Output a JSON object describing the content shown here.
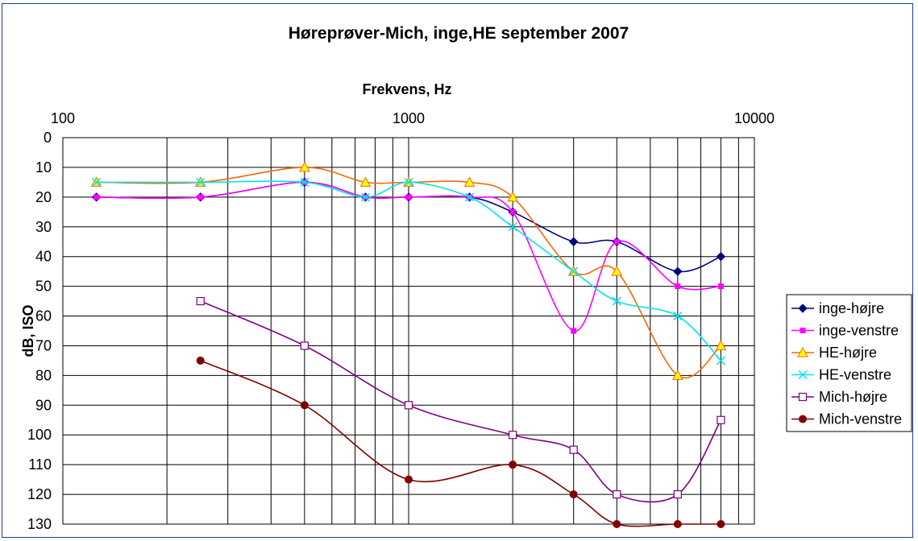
{
  "chart_data": {
    "type": "line",
    "title": "Høreprøver-Mich, inge,HE september 2007",
    "xlabel": "Frekvens, Hz",
    "ylabel": "dB, ISO",
    "x_scale": "log",
    "xlim": [
      100,
      10000
    ],
    "ylim": [
      0,
      130
    ],
    "y_reversed": true,
    "x_axis_position": "top",
    "x_tick_labels": [
      "100",
      "1000",
      "10000"
    ],
    "y_tick_labels": [
      "0",
      "10",
      "20",
      "30",
      "40",
      "50",
      "60",
      "70",
      "80",
      "90",
      "100",
      "110",
      "120",
      "130"
    ],
    "grid": true,
    "legend_position": "right",
    "series": [
      {
        "name": "inge-højre",
        "color": "#000080",
        "marker": "diamond",
        "x": [
          125,
          250,
          500,
          750,
          1000,
          1500,
          2000,
          3000,
          4000,
          6000,
          8000
        ],
        "y": [
          20,
          20,
          15,
          20,
          20,
          20,
          25,
          35,
          35,
          45,
          40
        ]
      },
      {
        "name": "inge-venstre",
        "color": "#ff00ff",
        "marker": "square",
        "x": [
          125,
          250,
          500,
          750,
          1000,
          1500,
          2000,
          3000,
          4000,
          6000,
          8000
        ],
        "y": [
          20,
          20,
          15,
          20,
          20,
          20,
          25,
          65,
          35,
          50,
          50
        ]
      },
      {
        "name": "HE-højre",
        "color": "#ff6600",
        "marker": "triangle",
        "x": [
          125,
          250,
          500,
          750,
          1000,
          1500,
          2000,
          3000,
          4000,
          6000,
          8000
        ],
        "y": [
          15,
          15,
          10,
          15,
          15,
          15,
          20,
          45,
          45,
          80,
          70
        ]
      },
      {
        "name": "HE-venstre",
        "color": "#00e5ee",
        "marker": "x",
        "x": [
          125,
          250,
          500,
          750,
          1000,
          1500,
          2000,
          3000,
          4000,
          6000,
          8000
        ],
        "y": [
          15,
          15,
          15,
          20,
          15,
          20,
          30,
          45,
          55,
          60,
          75
        ]
      },
      {
        "name": "Mich-højre",
        "color": "#800080",
        "marker": "open-square",
        "x": [
          250,
          500,
          1000,
          2000,
          3000,
          4000,
          6000,
          8000
        ],
        "y": [
          55,
          70,
          90,
          100,
          105,
          120,
          120,
          95
        ]
      },
      {
        "name": "Mich-venstre",
        "color": "#800000",
        "marker": "circle",
        "x": [
          250,
          500,
          1000,
          2000,
          3000,
          4000,
          6000,
          8000
        ],
        "y": [
          75,
          90,
          115,
          110,
          120,
          130,
          130,
          130
        ]
      }
    ]
  }
}
